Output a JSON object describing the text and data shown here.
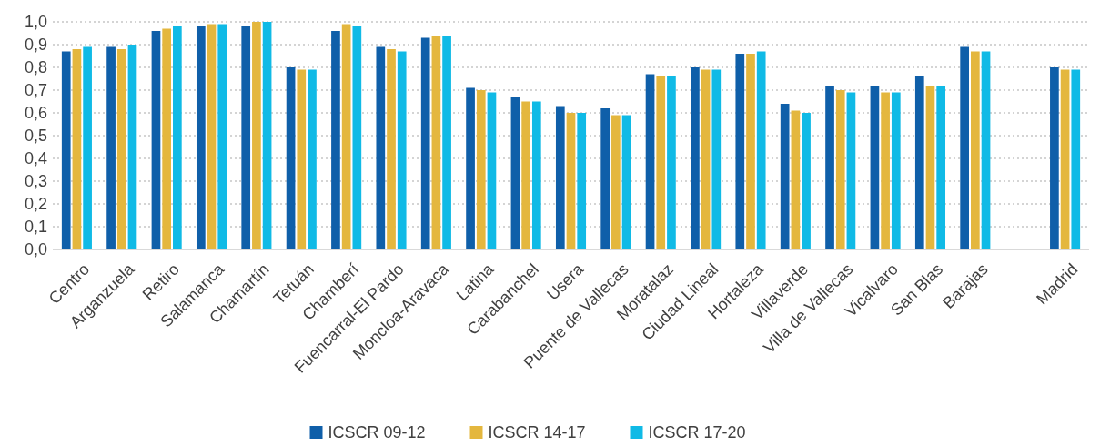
{
  "chart_data": {
    "type": "bar",
    "categories": [
      "Centro",
      "Arganzuela",
      "Retiro",
      "Salamanca",
      "Chamartín",
      "Tetuán",
      "Chamberí",
      "Fuencarral-El Pardo",
      "Moncloa-Aravaca",
      "Latina",
      "Carabanchel",
      "Usera",
      "Puente de Vallecas",
      "Moratalaz",
      "Ciudad Lineal",
      "Hortaleza",
      "Villaverde",
      "Villa de Vallecas",
      "Vicálvaro",
      "San Blas",
      "Barajas",
      null,
      "Madrid"
    ],
    "series": [
      {
        "name": "ICSCR 09-12",
        "color": "#0f5fa9",
        "values": [
          0.87,
          0.89,
          0.96,
          0.98,
          0.98,
          0.8,
          0.96,
          0.89,
          0.93,
          0.71,
          0.67,
          0.63,
          0.62,
          0.77,
          0.8,
          0.86,
          0.64,
          0.72,
          0.72,
          0.76,
          0.89,
          null,
          0.8
        ]
      },
      {
        "name": "ICSCR 14-17",
        "color": "#e4b73e",
        "values": [
          0.88,
          0.88,
          0.97,
          0.99,
          1.0,
          0.79,
          0.99,
          0.88,
          0.94,
          0.7,
          0.65,
          0.6,
          0.59,
          0.76,
          0.79,
          0.86,
          0.61,
          0.7,
          0.69,
          0.72,
          0.87,
          null,
          0.79
        ]
      },
      {
        "name": "ICSCR 17-20",
        "color": "#10bae6",
        "values": [
          0.89,
          0.9,
          0.98,
          0.99,
          1.0,
          0.79,
          0.98,
          0.87,
          0.94,
          0.69,
          0.65,
          0.6,
          0.59,
          0.76,
          0.79,
          0.87,
          0.6,
          0.69,
          0.69,
          0.72,
          0.87,
          null,
          0.79
        ]
      }
    ],
    "ylim": [
      0,
      1.0
    ],
    "yticks": [
      {
        "value": 0,
        "label": "0,0"
      },
      {
        "value": 0.1,
        "label": "0,1"
      },
      {
        "value": 0.2,
        "label": "0,2"
      },
      {
        "value": 0.3,
        "label": "0,3"
      },
      {
        "value": 0.4,
        "label": "0,4"
      },
      {
        "value": 0.5,
        "label": "0,5"
      },
      {
        "value": 0.6,
        "label": "0,6"
      },
      {
        "value": 0.7,
        "label": "0,7"
      },
      {
        "value": 0.8,
        "label": "0,8"
      },
      {
        "value": 0.9,
        "label": "0,9"
      },
      {
        "value": 1.0,
        "label": "1,0"
      }
    ],
    "grid": "y",
    "legend": "bottom"
  }
}
